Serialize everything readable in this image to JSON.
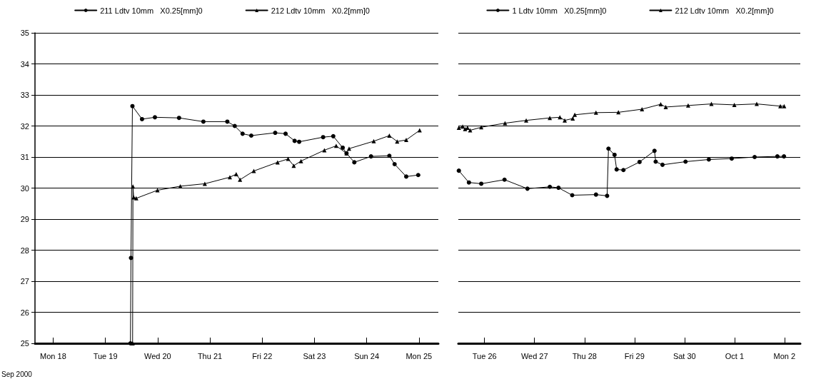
{
  "chart_data": [
    {
      "type": "line",
      "xlim": [
        "2000-09-17T15:40",
        "2000-09-25T08:55"
      ],
      "ylim": [
        25,
        35
      ],
      "yticks": [
        25,
        26,
        27,
        28,
        29,
        30,
        31,
        32,
        33,
        34,
        35
      ],
      "xticks": [
        {
          "value": "2000-09-18",
          "label": "Mon 18"
        },
        {
          "value": "2000-09-19",
          "label": "Tue 19"
        },
        {
          "value": "2000-09-20",
          "label": "Wed 20"
        },
        {
          "value": "2000-09-21",
          "label": "Thu 21"
        },
        {
          "value": "2000-09-22",
          "label": "Fri 22"
        },
        {
          "value": "2000-09-23",
          "label": "Sat 23"
        },
        {
          "value": "2000-09-24",
          "label": "Sun 24"
        },
        {
          "value": "2000-09-25",
          "label": "Mon 25"
        }
      ],
      "grid": "y",
      "legend": "top",
      "line_style": "solid",
      "annotations": [
        "Sep 2000"
      ],
      "series": [
        {
          "name": "211 Ldtv 10mm   X0.25[mm]0",
          "color": "#000000",
          "marker": "circle",
          "x": [
            "2000-09-19T11:30",
            "2000-09-19T11:45",
            "2000-09-19T12:25",
            "2000-09-19T16:50",
            "2000-09-19T22:45",
            "2000-09-20T09:50",
            "2000-09-20T21:00",
            "2000-09-21T08:00",
            "2000-09-21T11:25",
            "2000-09-21T15:00",
            "2000-09-21T19:00",
            "2000-09-22T06:00",
            "2000-09-22T10:45",
            "2000-09-22T14:55",
            "2000-09-22T17:00",
            "2000-09-23T04:00",
            "2000-09-23T08:40",
            "2000-09-23T13:00",
            "2000-09-23T14:45",
            "2000-09-23T18:20",
            "2000-09-24T02:00",
            "2000-09-24T10:25",
            "2000-09-24T12:50",
            "2000-09-24T18:10",
            "2000-09-24T23:40"
          ],
          "values": [
            25.0,
            27.75,
            32.64,
            32.22,
            32.28,
            32.26,
            32.14,
            32.14,
            32.0,
            31.75,
            31.69,
            31.78,
            31.75,
            31.52,
            31.49,
            31.64,
            31.67,
            31.3,
            31.12,
            30.83,
            31.02,
            31.04,
            30.77,
            30.37,
            30.42
          ]
        },
        {
          "name": "212 Ldtv 10mm   X0.2[mm]0",
          "color": "#000000",
          "marker": "triangle",
          "x": [
            "2000-09-19T12:30",
            "2000-09-19T12:40",
            "2000-09-19T13:00",
            "2000-09-19T14:10",
            "2000-09-19T23:55",
            "2000-09-20T10:25",
            "2000-09-20T21:40",
            "2000-09-21T09:10",
            "2000-09-21T12:05",
            "2000-09-21T13:50",
            "2000-09-21T20:10",
            "2000-09-22T07:05",
            "2000-09-22T11:55",
            "2000-09-22T14:30",
            "2000-09-22T17:50",
            "2000-09-23T04:35",
            "2000-09-23T10:00",
            "2000-09-23T14:45",
            "2000-09-23T15:55",
            "2000-09-24T03:15",
            "2000-09-24T10:25",
            "2000-09-24T14:00",
            "2000-09-24T18:10",
            "2000-09-25T00:20"
          ],
          "values": [
            25.0,
            30.05,
            29.7,
            29.67,
            29.93,
            30.06,
            30.14,
            30.35,
            30.45,
            30.27,
            30.55,
            30.83,
            30.94,
            30.72,
            30.87,
            31.22,
            31.36,
            31.12,
            31.27,
            31.51,
            31.69,
            31.5,
            31.55,
            31.86
          ]
        }
      ]
    },
    {
      "type": "line",
      "xlim": [
        "2000-09-25T11:25",
        "2000-10-02T07:35"
      ],
      "ylim": [
        25,
        35
      ],
      "yticks": [
        25,
        26,
        27,
        28,
        29,
        30,
        31,
        32,
        33,
        34,
        35
      ],
      "tick_labels": "x",
      "xticks": [
        {
          "value": "2000-09-26",
          "label": "Tue 26"
        },
        {
          "value": "2000-09-27",
          "label": "Wed 27"
        },
        {
          "value": "2000-09-28",
          "label": "Thu 28"
        },
        {
          "value": "2000-09-29",
          "label": "Fri 29"
        },
        {
          "value": "2000-09-30",
          "label": "Sat 30"
        },
        {
          "value": "2000-10-01",
          "label": "Oct 1"
        },
        {
          "value": "2000-10-02",
          "label": "Mon 2"
        }
      ],
      "grid": "y",
      "legend": "top",
      "line_style": "solid",
      "series": [
        {
          "name": "1 Ldtv 10mm   X0.25[mm]0",
          "color": "#000000",
          "marker": "circle",
          "x": [
            "2000-09-25T11:40",
            "2000-09-25T16:30",
            "2000-09-25T22:25",
            "2000-09-26T09:35",
            "2000-09-26T20:35",
            "2000-09-27T07:20",
            "2000-09-27T11:30",
            "2000-09-27T18:05",
            "2000-09-28T05:30",
            "2000-09-28T10:50",
            "2000-09-28T11:30",
            "2000-09-28T14:25",
            "2000-09-28T15:25",
            "2000-09-28T18:40",
            "2000-09-29T02:25",
            "2000-09-29T09:35",
            "2000-09-29T10:10",
            "2000-09-29T13:25",
            "2000-09-30T00:30",
            "2000-09-30T11:40",
            "2000-09-30T22:40",
            "2000-10-01T09:40",
            "2000-10-01T20:35",
            "2000-10-01T23:45"
          ],
          "values": [
            30.56,
            30.18,
            30.14,
            30.27,
            29.98,
            30.04,
            30.01,
            29.77,
            29.79,
            29.75,
            31.27,
            31.07,
            30.6,
            30.58,
            30.84,
            31.2,
            30.85,
            30.75,
            30.85,
            30.92,
            30.95,
            31.0,
            31.02,
            31.02
          ]
        },
        {
          "name": "212 Ldtv 10mm   X0.2[mm]0",
          "color": "#000000",
          "marker": "triangle",
          "x": [
            "2000-09-25T11:40",
            "2000-09-25T13:30",
            "2000-09-25T14:40",
            "2000-09-25T15:50",
            "2000-09-25T17:05",
            "2000-09-25T22:25",
            "2000-09-26T09:50",
            "2000-09-26T20:00",
            "2000-09-27T07:20",
            "2000-09-27T12:10",
            "2000-09-27T14:30",
            "2000-09-27T18:20",
            "2000-09-27T19:20",
            "2000-09-28T05:30",
            "2000-09-28T16:15",
            "2000-09-29T03:35",
            "2000-09-29T12:35",
            "2000-09-29T15:00",
            "2000-09-30T01:45",
            "2000-09-30T12:55",
            "2000-09-30T23:55",
            "2000-10-01T10:40",
            "2000-10-01T22:00",
            "2000-10-01T23:50"
          ],
          "values": [
            31.94,
            31.98,
            31.9,
            31.94,
            31.86,
            31.96,
            32.09,
            32.18,
            32.26,
            32.28,
            32.18,
            32.24,
            32.36,
            32.43,
            32.44,
            32.54,
            32.7,
            32.61,
            32.66,
            32.71,
            32.68,
            32.71,
            32.64,
            32.64
          ]
        }
      ]
    }
  ]
}
